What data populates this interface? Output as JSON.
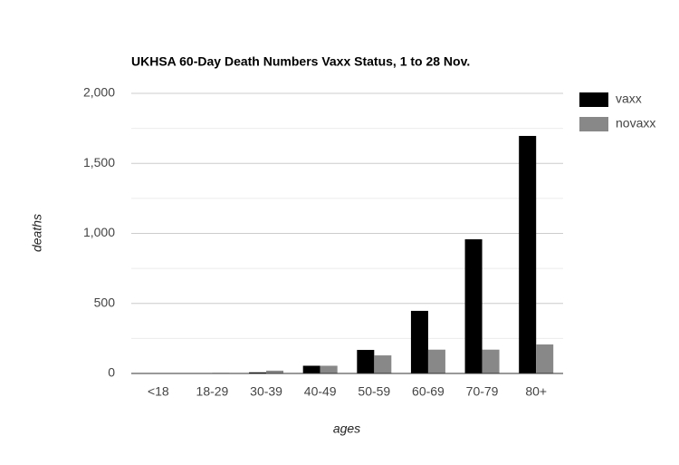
{
  "chart_data": {
    "type": "bar",
    "title": "UKHSA 60-Day Death Numbers Vaxx Status, 1 to 28 Nov.",
    "x_label": "ages",
    "y_label": "deaths",
    "categories": [
      "<18",
      "18-29",
      "30-39",
      "40-49",
      "50-59",
      "60-69",
      "70-79",
      "80+"
    ],
    "series": [
      {
        "name": "vaxx",
        "color": "#000000",
        "values": [
          1,
          2,
          8,
          55,
          168,
          447,
          958,
          1696
        ]
      },
      {
        "name": "novaxx",
        "color": "#888888",
        "values": [
          2,
          4,
          20,
          55,
          129,
          170,
          170,
          207
        ]
      }
    ],
    "ylim": [
      0,
      2000
    ],
    "yticks": [
      0,
      500,
      {
        "value": 1000,
        "label": "1,000"
      },
      {
        "value": 1500,
        "label": "1,500"
      },
      {
        "value": 2000,
        "label": "2,000"
      }
    ],
    "minor_yticks": [
      250,
      750,
      1250,
      1750
    ],
    "grid": true,
    "legend": "right"
  }
}
